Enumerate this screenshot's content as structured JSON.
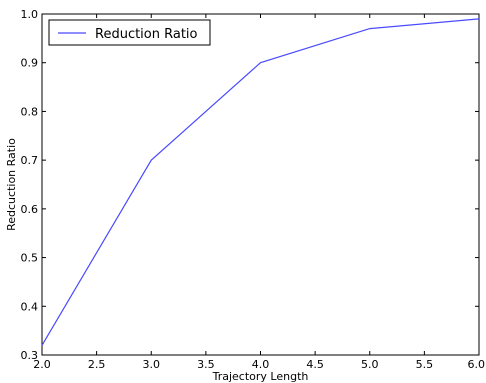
{
  "chart_data": {
    "type": "line",
    "title": "",
    "xlabel": "Trajectory Length",
    "ylabel": "Redcuction Ratio",
    "xlim": [
      2.0,
      6.0
    ],
    "ylim": [
      0.3,
      1.0
    ],
    "x_ticks": [
      "2.0",
      "2.5",
      "3.0",
      "3.5",
      "4.0",
      "4.5",
      "5.0",
      "5.5",
      "6.0"
    ],
    "y_ticks": [
      "0.3",
      "0.4",
      "0.5",
      "0.6",
      "0.7",
      "0.8",
      "0.9",
      "1.0"
    ],
    "grid": false,
    "legend_position": "top-left",
    "series": [
      {
        "name": "Reduction Ratio",
        "color": "#4a4aff",
        "x": [
          2.0,
          3.0,
          4.0,
          5.0,
          6.0
        ],
        "y": [
          0.32,
          0.7,
          0.9,
          0.97,
          0.99
        ]
      }
    ]
  }
}
